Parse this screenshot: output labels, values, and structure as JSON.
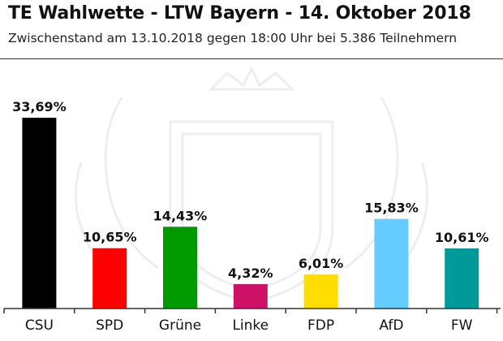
{
  "header": {
    "title": "TE Wahlwette - LTW Bayern - 14. Oktober 2018",
    "subtitle": "Zwischenstand am 13.10.2018 gegen 18:00 Uhr bei 5.386 Teilnehmern"
  },
  "chart_data": {
    "type": "bar",
    "title": "TE Wahlwette - LTW Bayern - 14. Oktober 2018",
    "subtitle": "Zwischenstand am 13.10.2018 gegen 18:00 Uhr bei 5.386 Teilnehmern",
    "categories": [
      "CSU",
      "SPD",
      "Grüne",
      "Linke",
      "FDP",
      "AfD",
      "FW"
    ],
    "values": [
      33.69,
      10.65,
      14.43,
      4.32,
      6.01,
      15.83,
      10.61
    ],
    "value_labels": [
      "33,69%",
      "10,65%",
      "14,43%",
      "4,32%",
      "6,01%",
      "15,83%",
      "10,61%"
    ],
    "colors": [
      "#000000",
      "#ff0000",
      "#009900",
      "#cc1166",
      "#ffdd00",
      "#66ccff",
      "#009999"
    ],
    "xlabel": "",
    "ylabel": "",
    "ylim": [
      0,
      36
    ],
    "grid": false,
    "legend": "none"
  }
}
